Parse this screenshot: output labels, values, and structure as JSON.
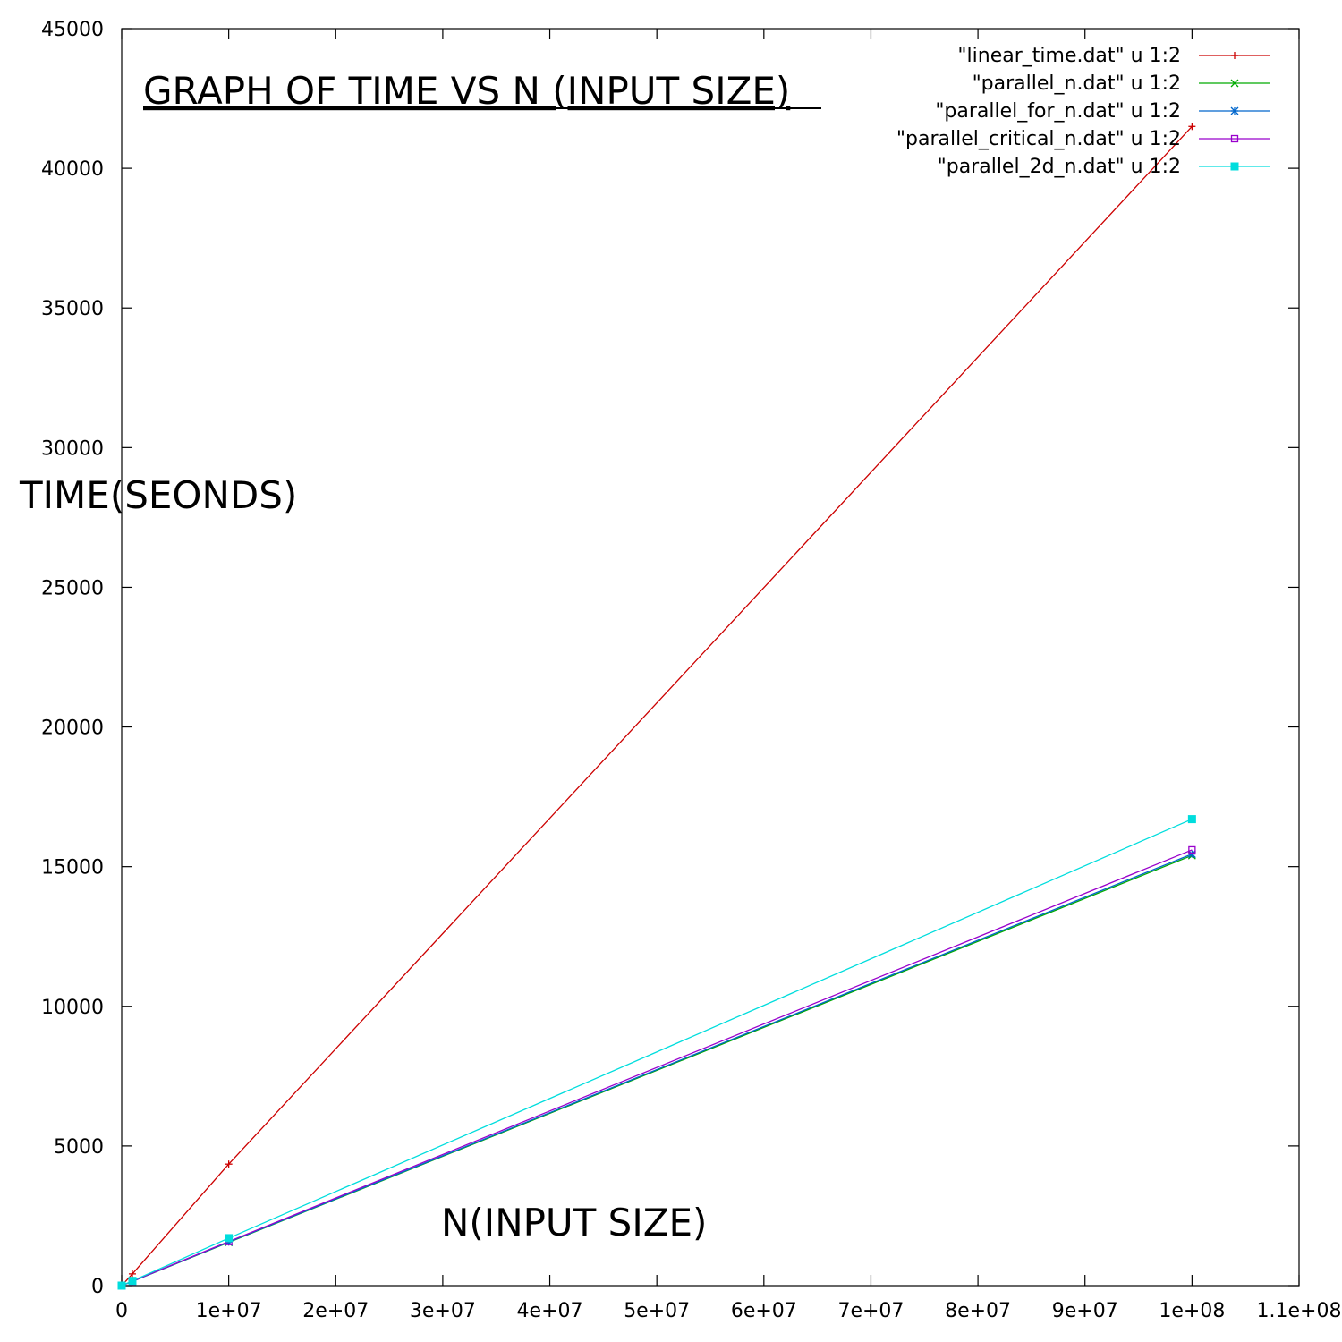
{
  "chart_data": {
    "type": "line",
    "title": "GRAPH OF TIME VS N (INPUT SIZE)",
    "xlabel": "N(INPUT SIZE)",
    "ylabel": "TIME(SEONDS)",
    "xlim": [
      0,
      110000000
    ],
    "ylim": [
      0,
      45000
    ],
    "x_ticks": [
      0,
      10000000,
      20000000,
      30000000,
      40000000,
      50000000,
      60000000,
      70000000,
      80000000,
      90000000,
      100000000,
      110000000
    ],
    "x_tick_labels": [
      "0",
      "1e+07",
      "2e+07",
      "3e+07",
      "4e+07",
      "5e+07",
      "6e+07",
      "7e+07",
      "8e+07",
      "9e+07",
      "1e+08",
      "1.1e+08"
    ],
    "y_ticks": [
      0,
      5000,
      10000,
      15000,
      20000,
      25000,
      30000,
      35000,
      40000,
      45000
    ],
    "y_tick_labels": [
      "0",
      "5000",
      "10000",
      "15000",
      "20000",
      "25000",
      "30000",
      "35000",
      "40000",
      "45000"
    ],
    "grid": false,
    "legend_position": "top-right",
    "series": [
      {
        "name": "\"linear_time.dat\" u 1:2",
        "color": "#cc0000",
        "marker": "plus",
        "x": [
          0,
          1000000,
          10000000,
          100000000
        ],
        "y": [
          0,
          420,
          4350,
          41500
        ]
      },
      {
        "name": "\"parallel_n.dat\" u 1:2",
        "color": "#00aa00",
        "marker": "cross",
        "x": [
          0,
          1000000,
          10000000,
          100000000
        ],
        "y": [
          0,
          150,
          1550,
          15400
        ]
      },
      {
        "name": "\"parallel_for_n.dat\" u 1:2",
        "color": "#0066cc",
        "marker": "star",
        "x": [
          0,
          1000000,
          10000000,
          100000000
        ],
        "y": [
          0,
          150,
          1560,
          15450
        ]
      },
      {
        "name": "\"parallel_critical_n.dat\" u 1:2",
        "color": "#9900cc",
        "marker": "open-square",
        "x": [
          0,
          1000000,
          10000000,
          100000000
        ],
        "y": [
          0,
          155,
          1580,
          15600
        ]
      },
      {
        "name": "\"parallel_2d_n.dat\" u 1:2",
        "color": "#00dddd",
        "marker": "filled-square",
        "x": [
          0,
          1000000,
          10000000,
          100000000
        ],
        "y": [
          0,
          170,
          1700,
          16700
        ]
      }
    ]
  }
}
